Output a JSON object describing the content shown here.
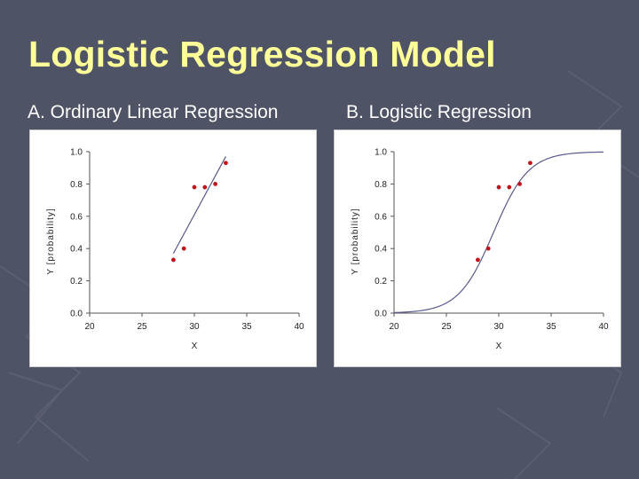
{
  "title": "Logistic Regression Model",
  "panels": [
    {
      "label": "A. Ordinary Linear Regression"
    },
    {
      "label": "B. Logistic Regression"
    }
  ],
  "colors": {
    "background": "#4f5366",
    "title": "#ffff99",
    "point": "#c0151c",
    "line": "#5a5a8c"
  },
  "chart_data": [
    {
      "type": "scatter",
      "xlabel": "X",
      "ylabel": "Y [probability]",
      "xlim": [
        20,
        40
      ],
      "ylim": [
        0.0,
        1.0
      ],
      "xticks": [
        "20",
        "25",
        "30",
        "35",
        "40"
      ],
      "yticks": [
        "0.0",
        "0.2",
        "0.4",
        "0.6",
        "0.8",
        "1.0"
      ],
      "points": [
        {
          "x": 28,
          "y": 0.33
        },
        {
          "x": 29,
          "y": 0.4
        },
        {
          "x": 30,
          "y": 0.78
        },
        {
          "x": 31,
          "y": 0.78
        },
        {
          "x": 32,
          "y": 0.8
        },
        {
          "x": 33,
          "y": 0.93
        }
      ],
      "fit": {
        "kind": "linear",
        "x_range": [
          28,
          33
        ],
        "y_range": [
          0.37,
          0.97
        ]
      },
      "grid": false
    },
    {
      "type": "scatter",
      "xlabel": "X",
      "ylabel": "Y [probability]",
      "xlim": [
        20,
        40
      ],
      "ylim": [
        0.0,
        1.0
      ],
      "xticks": [
        "20",
        "25",
        "30",
        "35",
        "40"
      ],
      "yticks": [
        "0.0",
        "0.2",
        "0.4",
        "0.6",
        "0.8",
        "1.0"
      ],
      "points": [
        {
          "x": 28,
          "y": 0.33
        },
        {
          "x": 29,
          "y": 0.4
        },
        {
          "x": 30,
          "y": 0.78
        },
        {
          "x": 31,
          "y": 0.78
        },
        {
          "x": 32,
          "y": 0.8
        },
        {
          "x": 33,
          "y": 0.93
        }
      ],
      "fit": {
        "kind": "logistic",
        "x_range": [
          20,
          40
        ],
        "midpoint": 29.5,
        "slope": 0.6
      },
      "grid": false
    }
  ]
}
